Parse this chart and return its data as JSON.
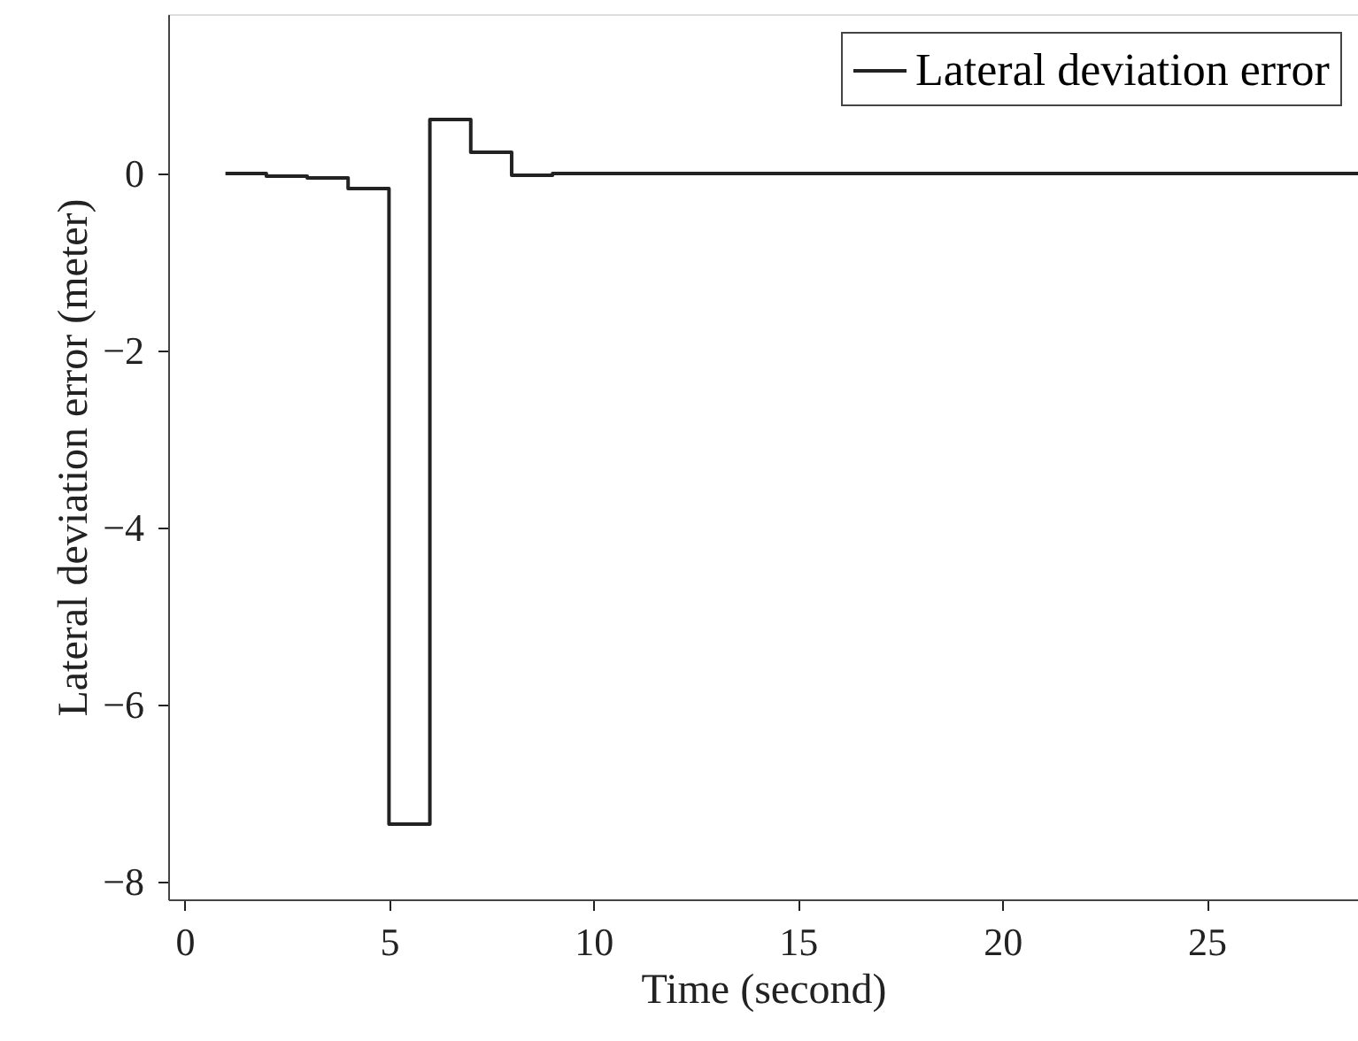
{
  "chart_data": {
    "type": "step",
    "xlabel": "Time (second)",
    "ylabel": "Lateral deviation error (meter)",
    "x": [
      1,
      2,
      3,
      4,
      5,
      6,
      7,
      8,
      9,
      10,
      15,
      20,
      25,
      28.7
    ],
    "series": [
      {
        "name": "Lateral deviation error",
        "color": "#222222",
        "values": [
          0.0,
          -0.03,
          -0.05,
          -0.17,
          -7.35,
          0.61,
          0.24,
          -0.02,
          0.0,
          0.0,
          0.0,
          0.0,
          0.0,
          0.0
        ]
      }
    ],
    "xlim": [
      -0.4,
      28.7
    ],
    "xticks": [
      0,
      5,
      10,
      15,
      20,
      25
    ],
    "ylim": [
      -8.2,
      1.8
    ],
    "yticks": [
      -8,
      -6,
      -4,
      -2,
      0
    ],
    "grid": false,
    "legend": "top right",
    "marker": "none",
    "line_style": "solid"
  }
}
